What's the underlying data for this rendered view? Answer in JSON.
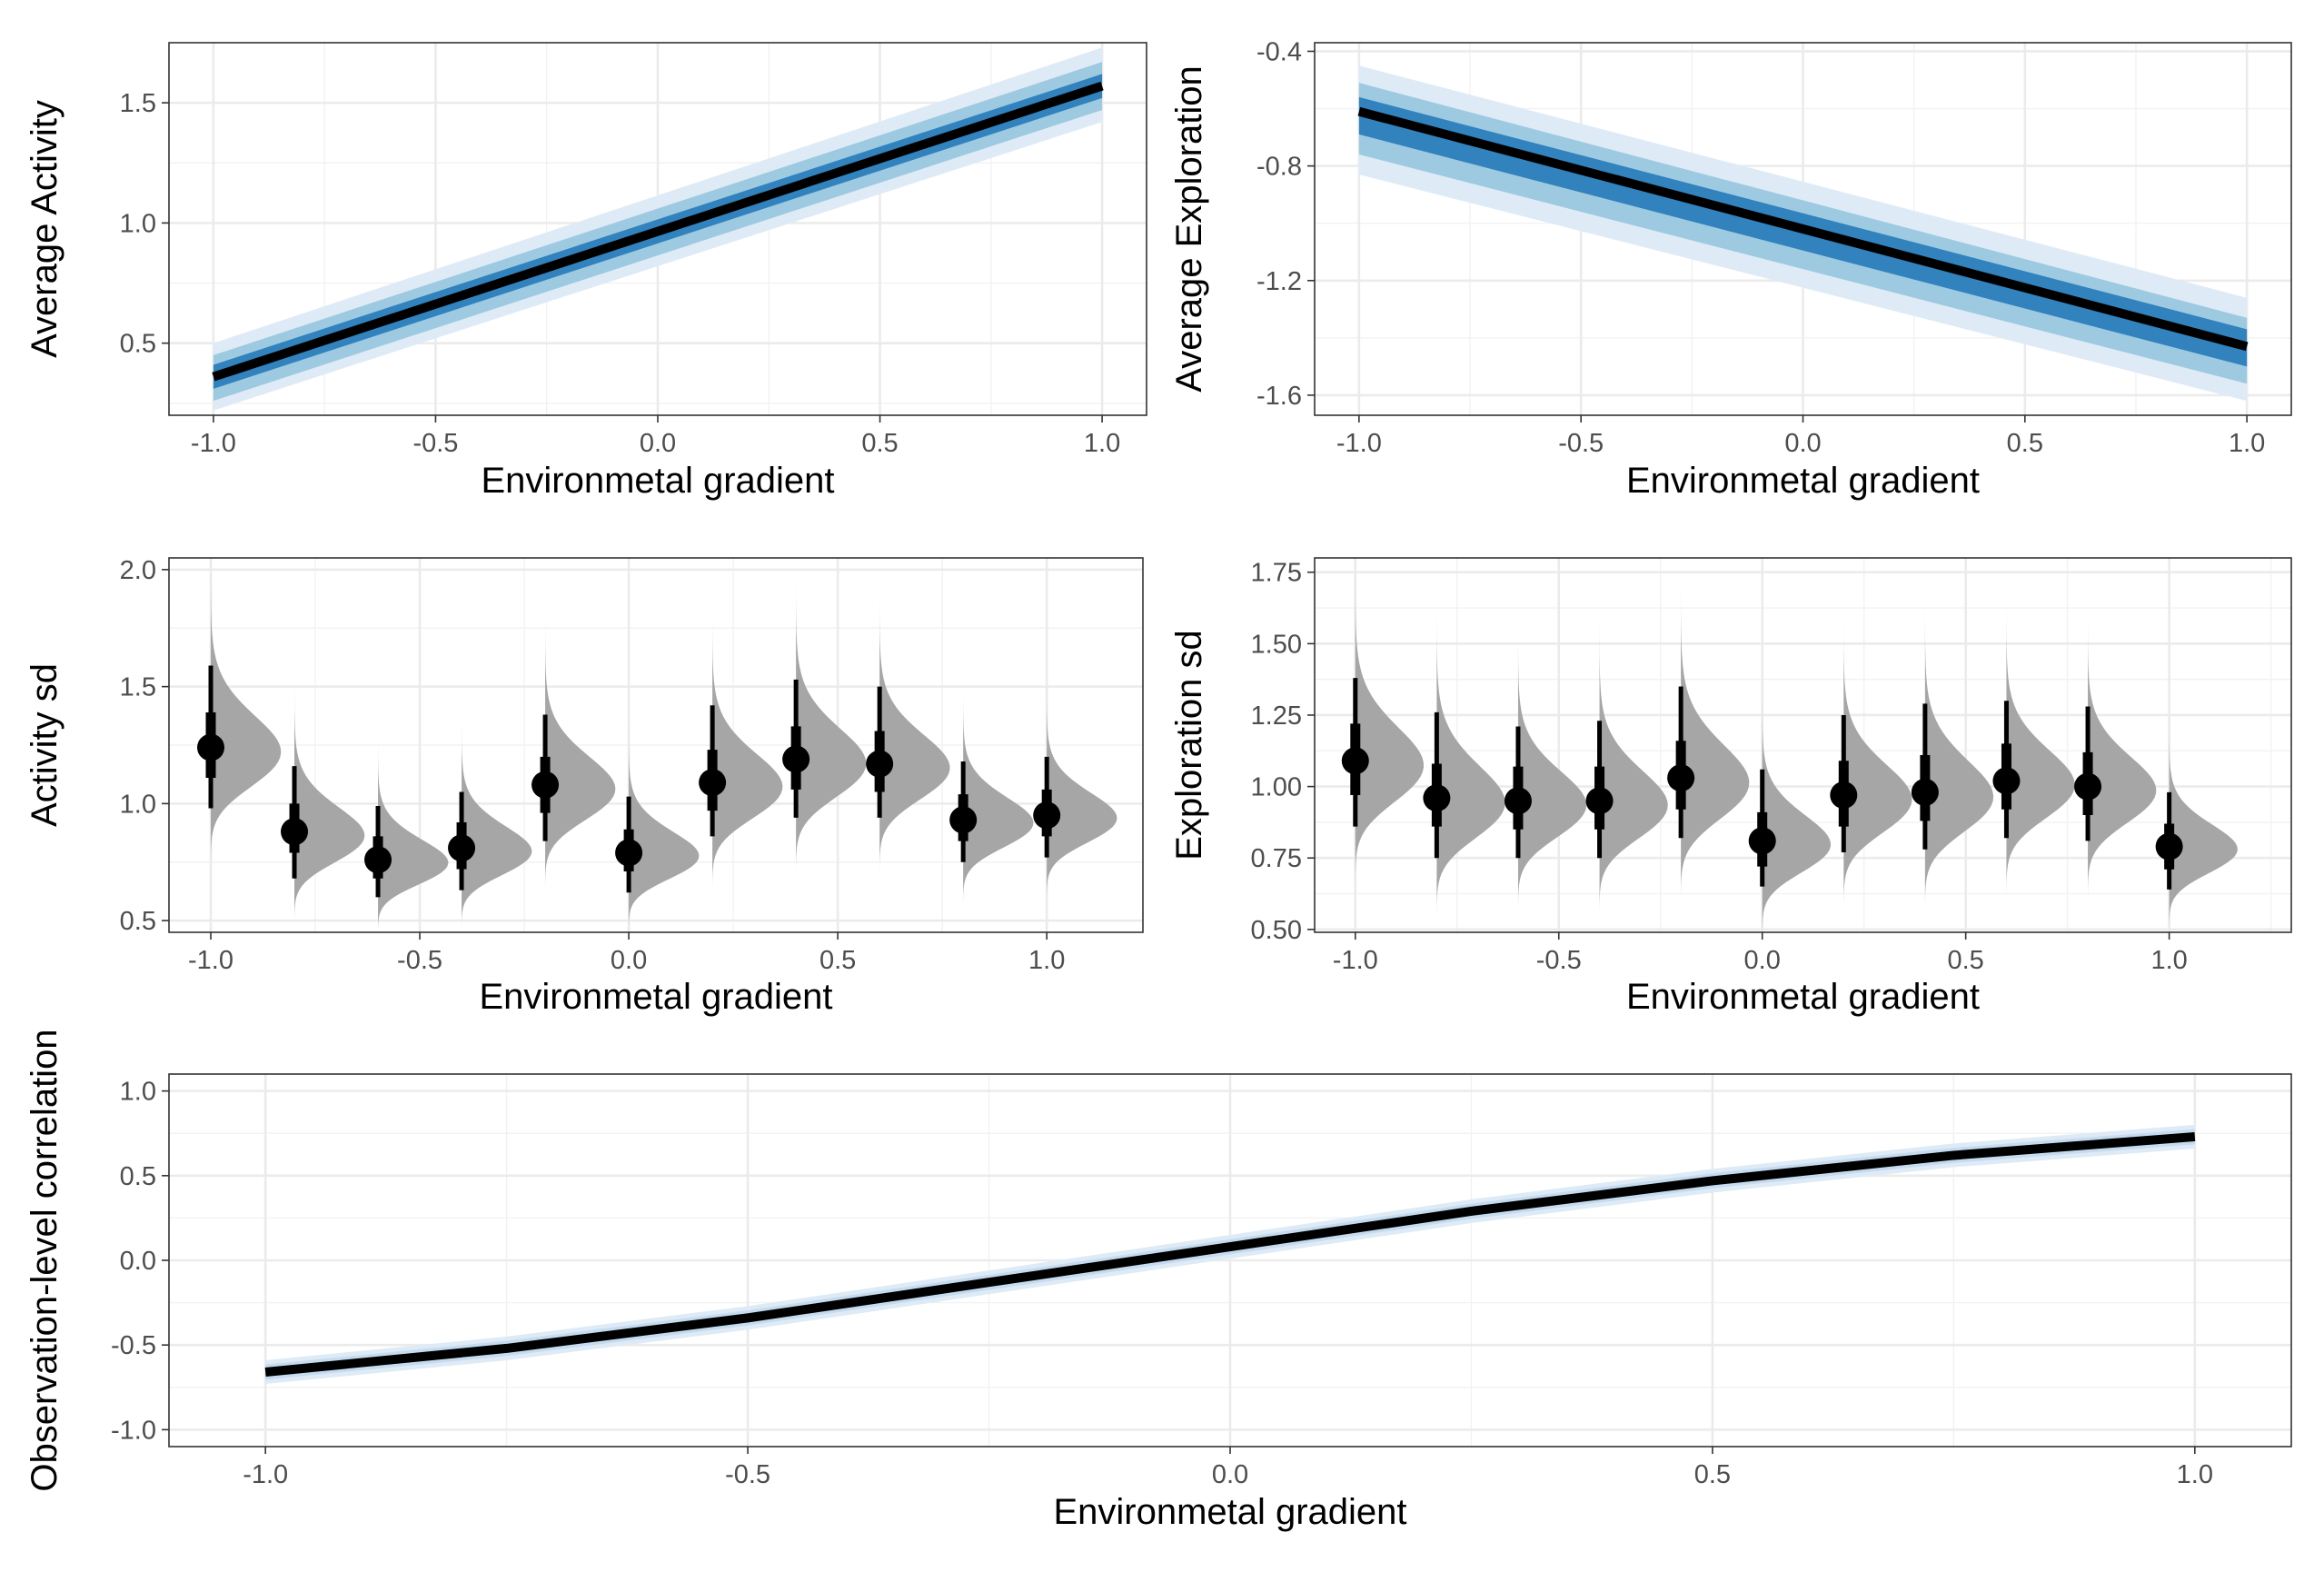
{
  "chart_data": [
    {
      "id": "p1",
      "type": "line",
      "xlabel": "Environmetal gradient",
      "ylabel": "Average Activity",
      "xlim": [
        -1.1,
        1.1
      ],
      "ylim": [
        0.2,
        1.75
      ],
      "xticks": [
        -1.0,
        -0.5,
        0.0,
        0.5,
        1.0
      ],
      "xtick_labels": [
        "-1.0",
        "-0.5",
        "0.0",
        "0.5",
        "1.0"
      ],
      "yticks": [
        0.5,
        1.0,
        1.5
      ],
      "ytick_labels": [
        "0.5",
        "1.0",
        "1.5"
      ],
      "grid": true,
      "line": {
        "x": [
          -1.0,
          1.0
        ],
        "y": [
          0.36,
          1.57
        ]
      },
      "bands": [
        {
          "level": "outer",
          "lower": [
            0.22,
            1.42
          ],
          "upper": [
            0.5,
            1.73
          ],
          "color": "#deebf7"
        },
        {
          "level": "middle",
          "lower": [
            0.26,
            1.47
          ],
          "upper": [
            0.45,
            1.67
          ],
          "color": "#9ecae1"
        },
        {
          "level": "inner",
          "lower": [
            0.31,
            1.52
          ],
          "upper": [
            0.41,
            1.62
          ],
          "color": "#3182bd"
        }
      ]
    },
    {
      "id": "p2",
      "type": "line",
      "xlabel": "Environmetal gradient",
      "ylabel": "Average Exploration",
      "xlim": [
        -1.1,
        1.1
      ],
      "ylim": [
        -1.67,
        -0.37
      ],
      "xticks": [
        -1.0,
        -0.5,
        0.0,
        0.5,
        1.0
      ],
      "xtick_labels": [
        "-1.0",
        "-0.5",
        "0.0",
        "0.5",
        "1.0"
      ],
      "yticks": [
        -1.6,
        -1.2,
        -0.8,
        -0.4
      ],
      "ytick_labels": [
        "-1.6",
        "-1.2",
        "-0.8",
        "-0.4"
      ],
      "grid": true,
      "line": {
        "x": [
          -1.0,
          1.0
        ],
        "y": [
          -0.61,
          -1.43
        ]
      },
      "bands": [
        {
          "level": "outer",
          "lower": [
            -0.83,
            -1.62
          ],
          "upper": [
            -0.45,
            -1.26
          ],
          "color": "#deebf7"
        },
        {
          "level": "middle",
          "lower": [
            -0.76,
            -1.56
          ],
          "upper": [
            -0.51,
            -1.33
          ],
          "color": "#9ecae1"
        },
        {
          "level": "inner",
          "lower": [
            -0.69,
            -1.5
          ],
          "upper": [
            -0.56,
            -1.37
          ],
          "color": "#3182bd"
        }
      ]
    },
    {
      "id": "p3",
      "type": "scatter",
      "xlabel": "Environmetal gradient",
      "ylabel": "Activity sd",
      "xlim": [
        -1.1,
        1.23
      ],
      "ylim": [
        0.45,
        2.05
      ],
      "xticks": [
        -1.0,
        -0.5,
        0.0,
        0.5,
        1.0
      ],
      "xtick_labels": [
        "-1.0",
        "-0.5",
        "0.0",
        "0.5",
        "1.0"
      ],
      "yticks": [
        0.5,
        1.0,
        1.5,
        2.0
      ],
      "ytick_labels": [
        "0.5",
        "1.0",
        "1.5",
        "2.0"
      ],
      "grid": true,
      "density_color": "#a6a6a6",
      "points": [
        {
          "x": -1.0,
          "median": 1.24,
          "q66": [
            1.11,
            1.39
          ],
          "q95": [
            0.98,
            1.59
          ]
        },
        {
          "x": -0.8,
          "median": 0.88,
          "q66": [
            0.79,
            1.0
          ],
          "q95": [
            0.68,
            1.16
          ]
        },
        {
          "x": -0.6,
          "median": 0.76,
          "q66": [
            0.68,
            0.86
          ],
          "q95": [
            0.6,
            0.99
          ]
        },
        {
          "x": -0.4,
          "median": 0.81,
          "q66": [
            0.72,
            0.92
          ],
          "q95": [
            0.63,
            1.05
          ]
        },
        {
          "x": -0.2,
          "median": 1.08,
          "q66": [
            0.96,
            1.2
          ],
          "q95": [
            0.84,
            1.38
          ]
        },
        {
          "x": 0.0,
          "median": 0.79,
          "q66": [
            0.71,
            0.89
          ],
          "q95": [
            0.62,
            1.03
          ]
        },
        {
          "x": 0.2,
          "median": 1.09,
          "q66": [
            0.97,
            1.23
          ],
          "q95": [
            0.86,
            1.42
          ]
        },
        {
          "x": 0.4,
          "median": 1.19,
          "q66": [
            1.06,
            1.33
          ],
          "q95": [
            0.94,
            1.53
          ]
        },
        {
          "x": 0.6,
          "median": 1.17,
          "q66": [
            1.05,
            1.31
          ],
          "q95": [
            0.94,
            1.5
          ]
        },
        {
          "x": 0.8,
          "median": 0.93,
          "q66": [
            0.84,
            1.04
          ],
          "q95": [
            0.75,
            1.18
          ]
        },
        {
          "x": 1.0,
          "median": 0.95,
          "q66": [
            0.86,
            1.06
          ],
          "q95": [
            0.77,
            1.2
          ]
        }
      ]
    },
    {
      "id": "p4",
      "type": "scatter",
      "xlabel": "Environmetal gradient",
      "ylabel": "Exploration sd",
      "xlim": [
        -1.1,
        1.3
      ],
      "ylim": [
        0.49,
        1.8
      ],
      "xticks": [
        -1.0,
        -0.5,
        0.0,
        0.5,
        1.0
      ],
      "xtick_labels": [
        "-1.0",
        "-0.5",
        "0.0",
        "0.5",
        "1.0"
      ],
      "yticks": [
        0.5,
        0.75,
        1.0,
        1.25,
        1.5,
        1.75
      ],
      "ytick_labels": [
        "0.50",
        "0.75",
        "1.00",
        "1.25",
        "1.50",
        "1.75"
      ],
      "grid": true,
      "density_color": "#a6a6a6",
      "points": [
        {
          "x": -1.0,
          "median": 1.09,
          "q66": [
            0.97,
            1.22
          ],
          "q95": [
            0.86,
            1.38
          ]
        },
        {
          "x": -0.8,
          "median": 0.96,
          "q66": [
            0.86,
            1.08
          ],
          "q95": [
            0.75,
            1.26
          ]
        },
        {
          "x": -0.6,
          "median": 0.95,
          "q66": [
            0.85,
            1.07
          ],
          "q95": [
            0.75,
            1.21
          ]
        },
        {
          "x": -0.4,
          "median": 0.95,
          "q66": [
            0.85,
            1.07
          ],
          "q95": [
            0.75,
            1.23
          ]
        },
        {
          "x": -0.2,
          "median": 1.03,
          "q66": [
            0.92,
            1.16
          ],
          "q95": [
            0.82,
            1.35
          ]
        },
        {
          "x": 0.0,
          "median": 0.81,
          "q66": [
            0.72,
            0.91
          ],
          "q95": [
            0.65,
            1.06
          ]
        },
        {
          "x": 0.2,
          "median": 0.97,
          "q66": [
            0.86,
            1.09
          ],
          "q95": [
            0.77,
            1.25
          ]
        },
        {
          "x": 0.4,
          "median": 0.98,
          "q66": [
            0.88,
            1.11
          ],
          "q95": [
            0.78,
            1.29
          ]
        },
        {
          "x": 0.6,
          "median": 1.02,
          "q66": [
            0.92,
            1.15
          ],
          "q95": [
            0.82,
            1.3
          ]
        },
        {
          "x": 0.8,
          "median": 1.0,
          "q66": [
            0.9,
            1.12
          ],
          "q95": [
            0.81,
            1.28
          ]
        },
        {
          "x": 1.0,
          "median": 0.79,
          "q66": [
            0.71,
            0.87
          ],
          "q95": [
            0.64,
            0.98
          ]
        }
      ]
    },
    {
      "id": "p5",
      "type": "line",
      "xlabel": "Environmetal gradient",
      "ylabel": "Observation-level correlation",
      "xlim": [
        -1.1,
        1.1
      ],
      "ylim": [
        -1.1,
        1.1
      ],
      "xticks": [
        -1.0,
        -0.5,
        0.0,
        0.5,
        1.0
      ],
      "xtick_labels": [
        "-1.0",
        "-0.5",
        "0.0",
        "0.5",
        "1.0"
      ],
      "yticks": [
        -1.0,
        -0.5,
        0.0,
        0.5,
        1.0
      ],
      "ytick_labels": [
        "-1.0",
        "-0.5",
        "0.0",
        "0.5",
        "1.0"
      ],
      "grid": true,
      "line": {
        "x": [
          -1.0,
          -0.75,
          -0.5,
          -0.25,
          0.0,
          0.25,
          0.5,
          0.75,
          1.0
        ],
        "y": [
          -0.66,
          -0.52,
          -0.34,
          -0.13,
          0.08,
          0.29,
          0.47,
          0.62,
          0.73
        ]
      },
      "bands": [
        {
          "level": "outer",
          "halfwidth": 0.07,
          "color": "#deebf7"
        },
        {
          "level": "middle",
          "halfwidth": 0.045,
          "color": "#c6dbef"
        },
        {
          "level": "inner",
          "halfwidth": 0.025,
          "color": "#9ecae1"
        }
      ]
    }
  ]
}
